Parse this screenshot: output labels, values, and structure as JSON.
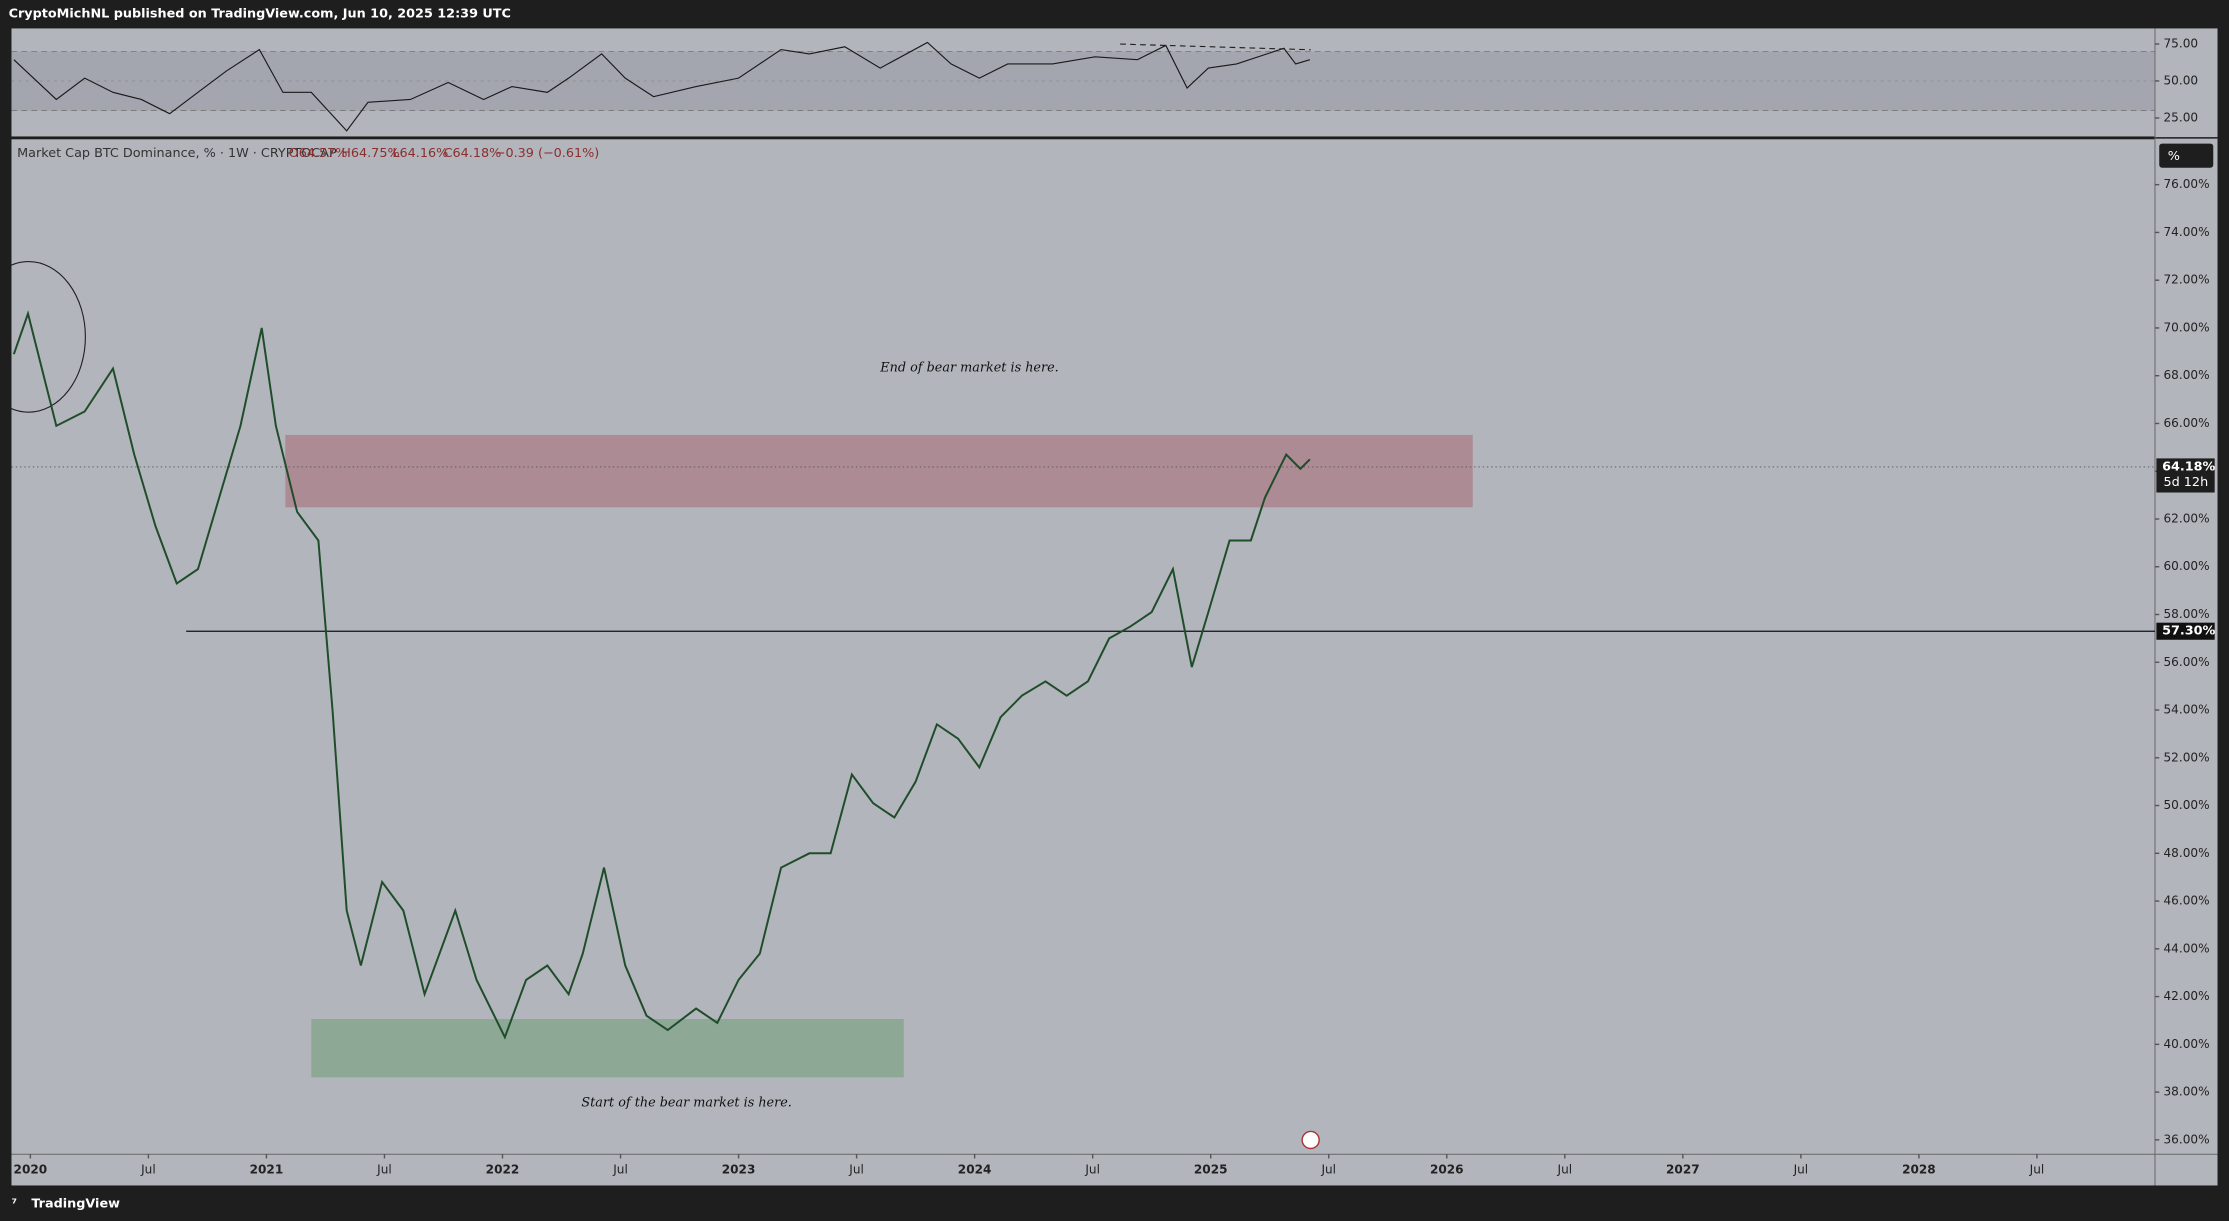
{
  "header": {
    "byline": "CryptoMichNL published on TradingView.com, Jun 10, 2025 12:39 UTC"
  },
  "footer": {
    "brand": "TradingView"
  },
  "legend": {
    "symbol": "Market Cap BTC Dominance, % · 1W · CRYPTOCAP",
    "open": "O64.57%",
    "high": "H64.75%",
    "low": "L64.16%",
    "close": "C64.18%",
    "change": "−0.39 (−0.61%)"
  },
  "scale_button": "%",
  "chart_data": [
    {
      "type": "line",
      "name": "RSI",
      "color": "#1a1a1a",
      "xlim": [
        2019.92,
        2029.0
      ],
      "ylim": [
        12.5,
        85.5
      ],
      "yticks": [
        {
          "value": 25,
          "label": "25.00"
        },
        {
          "value": 50,
          "label": "50.00"
        },
        {
          "value": 75,
          "label": "75.00"
        }
      ],
      "bands": [
        30,
        70
      ],
      "midline": 50,
      "x": [
        2019.93,
        2020.11,
        2020.23,
        2020.35,
        2020.47,
        2020.59,
        2020.71,
        2020.83,
        2020.97,
        2021.07,
        2021.19,
        2021.34,
        2021.43,
        2021.61,
        2021.77,
        2021.92,
        2022.04,
        2022.19,
        2022.28,
        2022.42,
        2022.52,
        2022.64,
        2022.82,
        2023.0,
        2023.18,
        2023.3,
        2023.45,
        2023.6,
        2023.8,
        2023.9,
        2024.02,
        2024.14,
        2024.33,
        2024.51,
        2024.69,
        2024.81,
        2024.9,
        2024.99,
        2025.11,
        2025.31,
        2025.36,
        2025.42
      ],
      "values": [
        64.4,
        37.5,
        51.9,
        42.3,
        37.5,
        27.9,
        42.3,
        56.7,
        71.2,
        42.3,
        42.3,
        16.3,
        35.6,
        37.5,
        49.0,
        37.5,
        46.2,
        42.3,
        51.9,
        68.3,
        51.9,
        39.4,
        46.2,
        51.9,
        71.2,
        68.3,
        73.1,
        58.7,
        76.0,
        61.5,
        51.9,
        61.5,
        61.5,
        66.3,
        64.4,
        74.0,
        45.2,
        58.7,
        61.5,
        72.1,
        61.5,
        64.4
      ]
    },
    {
      "type": "line",
      "name": "Market Cap BTC Dominance",
      "color": "#1f4d2a",
      "xlim": [
        2019.92,
        2029.0
      ],
      "ylim": [
        35.4,
        77.9
      ],
      "xticks": [
        {
          "value": 2020,
          "label": "2020"
        },
        {
          "value": 2020.5,
          "label": "Jul"
        },
        {
          "value": 2021,
          "label": "2021"
        },
        {
          "value": 2021.5,
          "label": "Jul"
        },
        {
          "value": 2022,
          "label": "2022"
        },
        {
          "value": 2022.5,
          "label": "Jul"
        },
        {
          "value": 2023,
          "label": "2023"
        },
        {
          "value": 2023.5,
          "label": "Jul"
        },
        {
          "value": 2024,
          "label": "2024"
        },
        {
          "value": 2024.5,
          "label": "Jul"
        },
        {
          "value": 2025,
          "label": "2025"
        },
        {
          "value": 2025.5,
          "label": "Jul"
        },
        {
          "value": 2026,
          "label": "2026"
        },
        {
          "value": 2026.5,
          "label": "Jul"
        },
        {
          "value": 2027,
          "label": "2027"
        },
        {
          "value": 2027.5,
          "label": "Jul"
        },
        {
          "value": 2028,
          "label": "2028"
        },
        {
          "value": 2028.5,
          "label": "Jul"
        }
      ],
      "yticks": [
        {
          "value": 36,
          "label": "36.00%"
        },
        {
          "value": 38,
          "label": "38.00%"
        },
        {
          "value": 40,
          "label": "40.00%"
        },
        {
          "value": 42,
          "label": "42.00%"
        },
        {
          "value": 44,
          "label": "44.00%"
        },
        {
          "value": 46,
          "label": "46.00%"
        },
        {
          "value": 48,
          "label": "48.00%"
        },
        {
          "value": 50,
          "label": "50.00%"
        },
        {
          "value": 52,
          "label": "52.00%"
        },
        {
          "value": 54,
          "label": "54.00%"
        },
        {
          "value": 56,
          "label": "56.00%"
        },
        {
          "value": 58,
          "label": "58.00%"
        },
        {
          "value": 60,
          "label": "60.00%"
        },
        {
          "value": 62,
          "label": "62.00%"
        },
        {
          "value": 64,
          "label": "64.00%"
        },
        {
          "value": 66,
          "label": "66.00%"
        },
        {
          "value": 68,
          "label": "68.00%"
        },
        {
          "value": 70,
          "label": "70.00%"
        },
        {
          "value": 72,
          "label": "72.00%"
        },
        {
          "value": 74,
          "label": "74.00%"
        },
        {
          "value": 76,
          "label": "76.00%"
        }
      ],
      "x": [
        2019.93,
        2019.99,
        2020.11,
        2020.23,
        2020.35,
        2020.44,
        2020.53,
        2020.62,
        2020.71,
        2020.8,
        2020.89,
        2020.98,
        2021.04,
        2021.13,
        2021.22,
        2021.28,
        2021.34,
        2021.4,
        2021.49,
        2021.58,
        2021.67,
        2021.8,
        2021.89,
        2022.01,
        2022.1,
        2022.19,
        2022.28,
        2022.34,
        2022.43,
        2022.52,
        2022.61,
        2022.7,
        2022.82,
        2022.91,
        2023.0,
        2023.09,
        2023.18,
        2023.3,
        2023.39,
        2023.48,
        2023.57,
        2023.66,
        2023.75,
        2023.84,
        2023.93,
        2024.02,
        2024.11,
        2024.2,
        2024.3,
        2024.39,
        2024.48,
        2024.57,
        2024.66,
        2024.75,
        2024.84,
        2024.92,
        2024.99,
        2025.08,
        2025.17,
        2025.23,
        2025.32,
        2025.38,
        2025.42
      ],
      "values": [
        68.9,
        70.6,
        65.9,
        66.5,
        68.3,
        64.7,
        61.7,
        59.3,
        59.9,
        62.9,
        65.9,
        70.0,
        65.9,
        62.3,
        61.1,
        54.0,
        45.6,
        43.3,
        46.8,
        45.6,
        42.1,
        45.6,
        42.7,
        40.3,
        42.7,
        43.3,
        42.1,
        43.8,
        47.4,
        43.3,
        41.2,
        40.6,
        41.5,
        40.9,
        42.7,
        43.8,
        47.4,
        48.0,
        48.0,
        51.3,
        50.1,
        49.5,
        51.0,
        53.4,
        52.8,
        51.6,
        53.7,
        54.6,
        55.2,
        54.6,
        55.2,
        57.0,
        57.5,
        58.1,
        59.9,
        55.8,
        58.1,
        61.1,
        61.1,
        62.9,
        64.7,
        64.1,
        64.5
      ],
      "zones": [
        {
          "x": [
            2021.08,
            2026.11
          ],
          "y": [
            62.49,
            65.52
          ],
          "color": "rgba(160,70,85,0.38)"
        },
        {
          "x": [
            2021.19,
            2023.7
          ],
          "y": [
            38.62,
            41.06
          ],
          "color": "rgba(80,150,90,0.38)"
        }
      ],
      "level": {
        "value": 57.3,
        "label": "57.30%",
        "start": 2020.66
      },
      "last": {
        "value": 64.18,
        "label": "64.18%",
        "countdown": "5d 12h"
      },
      "annotations": [
        "End of bear market is here.",
        "Start of the bear market is here."
      ]
    }
  ]
}
